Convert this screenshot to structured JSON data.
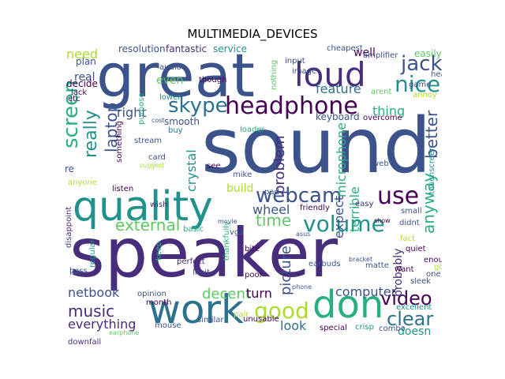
{
  "title": "MULTIMEDIA_DEVICES",
  "palette": [
    "#440154",
    "#472d7b",
    "#3b528b",
    "#2c728e",
    "#21918c",
    "#28ae80",
    "#5ec962",
    "#addc30",
    "#fde725"
  ],
  "words": [
    {
      "t": "sound",
      "c": "#3b528b"
    },
    {
      "t": "speaker",
      "c": "#472d7b"
    },
    {
      "t": "great",
      "c": "#3b528b"
    },
    {
      "t": "quality",
      "c": "#21918c"
    },
    {
      "t": "work",
      "c": "#2c728e"
    },
    {
      "t": "don",
      "c": "#28ae80"
    },
    {
      "t": "loud",
      "c": "#472d7b"
    },
    {
      "t": "headphone",
      "c": "#440154"
    },
    {
      "t": "webcam",
      "c": "#3b528b"
    },
    {
      "t": "volume",
      "c": "#21918c"
    },
    {
      "t": "use",
      "c": "#440154"
    },
    {
      "t": "skype",
      "c": "#2c728e"
    },
    {
      "t": "nice",
      "c": "#21918c"
    },
    {
      "t": "jack",
      "c": "#3b528b"
    },
    {
      "t": "screen",
      "c": "#28ae80"
    },
    {
      "t": "good",
      "c": "#addc30"
    },
    {
      "t": "video",
      "c": "#440154"
    },
    {
      "t": "clear",
      "c": "#2c728e"
    },
    {
      "t": "really",
      "c": "#21918c"
    },
    {
      "t": "laptop",
      "c": "#3b528b"
    },
    {
      "t": "external",
      "c": "#5ec962"
    },
    {
      "t": "time",
      "c": "#5ec962"
    },
    {
      "t": "music",
      "c": "#472d7b"
    },
    {
      "t": "anyway",
      "c": "#28ae80"
    },
    {
      "t": "better",
      "c": "#3b528b"
    },
    {
      "t": "microphone",
      "c": "#28ae80"
    },
    {
      "t": "picture",
      "c": "#3b528b"
    },
    {
      "t": "problem",
      "c": "#472d7b"
    },
    {
      "t": "decent",
      "c": "#5ec962"
    },
    {
      "t": "everything",
      "c": "#472d7b"
    },
    {
      "t": "netbook",
      "c": "#3b528b"
    },
    {
      "t": "computer",
      "c": "#3b528b"
    },
    {
      "t": "look",
      "c": "#2c728e"
    },
    {
      "t": "turn",
      "c": "#440154"
    },
    {
      "t": "wheel",
      "c": "#3b528b"
    },
    {
      "t": "crystal",
      "c": "#21918c"
    },
    {
      "t": "expect",
      "c": "#3b528b"
    },
    {
      "t": "terrible",
      "c": "#28ae80"
    },
    {
      "t": "feature",
      "c": "#2c728e"
    },
    {
      "t": "thing",
      "c": "#28ae80"
    },
    {
      "t": "right",
      "c": "#3b528b"
    },
    {
      "t": "need",
      "c": "#addc30"
    },
    {
      "t": "real",
      "c": "#3b528b"
    },
    {
      "t": "well",
      "c": "#440154"
    },
    {
      "t": "even",
      "c": "#5ec962"
    },
    {
      "t": "probably",
      "c": "#472d7b"
    },
    {
      "t": "doesn",
      "c": "#21918c"
    },
    {
      "t": "build",
      "c": "#addc30"
    },
    {
      "t": "resolution",
      "c": "#3b528b"
    },
    {
      "t": "fantastic",
      "c": "#472d7b"
    },
    {
      "t": "service",
      "c": "#21918c"
    },
    {
      "t": "plan",
      "c": "#3b528b"
    },
    {
      "t": "decide",
      "c": "#440154"
    },
    {
      "t": "lack",
      "c": "#440154"
    },
    {
      "t": "etc",
      "c": "#440154"
    },
    {
      "t": "purpose",
      "c": "#28ae80"
    },
    {
      "t": "audio",
      "c": "#3b528b"
    },
    {
      "t": "lower",
      "c": "#21918c"
    },
    {
      "t": "though",
      "c": "#440154"
    },
    {
      "t": "input",
      "c": "#3b528b"
    },
    {
      "t": "image",
      "c": "#3b528b"
    },
    {
      "t": "nothing",
      "c": "#5ec962"
    },
    {
      "t": "cheapest",
      "c": "#3b528b"
    },
    {
      "t": "amplifier",
      "c": "#3b528b"
    },
    {
      "t": "easily",
      "c": "#5ec962"
    },
    {
      "t": "head",
      "c": "#3b528b"
    },
    {
      "t": "arent",
      "c": "#5ec962"
    },
    {
      "t": "game",
      "c": "#3b528b"
    },
    {
      "t": "annoy",
      "c": "#addc30"
    },
    {
      "t": "keyboard",
      "c": "#3b528b"
    },
    {
      "t": "overcome",
      "c": "#440154"
    },
    {
      "t": "loader",
      "c": "#28ae80"
    },
    {
      "t": "cost",
      "c": "#3b528b"
    },
    {
      "t": "smooth",
      "c": "#3b528b"
    },
    {
      "t": "buy",
      "c": "#2c728e"
    },
    {
      "t": "stream",
      "c": "#3b528b"
    },
    {
      "t": "something",
      "c": "#440154"
    },
    {
      "t": "card",
      "c": "#3b528b"
    },
    {
      "t": "suggest",
      "c": "#addc30"
    },
    {
      "t": "see",
      "c": "#440154"
    },
    {
      "t": "web",
      "c": "#3b528b"
    },
    {
      "t": "mike",
      "c": "#3b528b"
    },
    {
      "t": "re",
      "c": "#3b528b"
    },
    {
      "t": "anyone",
      "c": "#addc30"
    },
    {
      "t": "listen",
      "c": "#440154"
    },
    {
      "t": "wish",
      "c": "#472d7b"
    },
    {
      "t": "pad",
      "c": "#3b528b"
    },
    {
      "t": "friendly",
      "c": "#440154"
    },
    {
      "t": "easy",
      "c": "#472d7b"
    },
    {
      "t": "small",
      "c": "#3b528b"
    },
    {
      "t": "touchscreen",
      "c": "#21918c"
    },
    {
      "t": "disappoint",
      "c": "#472d7b"
    },
    {
      "t": "perfect",
      "c": "#472d7b"
    },
    {
      "t": "movie",
      "c": "#3b528b"
    },
    {
      "t": "bite",
      "c": "#440154"
    },
    {
      "t": "vga",
      "c": "#3b528b"
    },
    {
      "t": "didnt",
      "c": "#3b528b"
    },
    {
      "t": "fact",
      "c": "#addc30"
    },
    {
      "t": "quiet",
      "c": "#440154"
    },
    {
      "t": "enough",
      "c": "#440154"
    },
    {
      "t": "isn",
      "c": "#3b528b"
    },
    {
      "t": "bass",
      "c": "#3b528b"
    },
    {
      "t": "regular",
      "c": "#21918c"
    },
    {
      "t": "keep",
      "c": "#28ae80"
    },
    {
      "t": "limit",
      "c": "#3b528b"
    },
    {
      "t": "thankfully",
      "c": "#28ae80"
    },
    {
      "t": "earbuds",
      "c": "#3b528b"
    },
    {
      "t": "matte",
      "c": "#3b528b"
    },
    {
      "t": "want",
      "c": "#440154"
    },
    {
      "t": "sleek",
      "c": "#3b528b"
    },
    {
      "t": "downfall",
      "c": "#472d7b"
    },
    {
      "t": "opinion",
      "c": "#3b528b"
    },
    {
      "t": "month",
      "c": "#440154"
    },
    {
      "t": "mouse",
      "c": "#3b528b"
    },
    {
      "t": "similar",
      "c": "#3b528b"
    },
    {
      "t": "unusable",
      "c": "#440154"
    },
    {
      "t": "special",
      "c": "#440154"
    },
    {
      "t": "crisp",
      "c": "#21918c"
    },
    {
      "t": "combo",
      "c": "#3b528b"
    },
    {
      "t": "poor",
      "c": "#440154"
    },
    {
      "t": "pair",
      "c": "#addc30"
    },
    {
      "t": "basic",
      "c": "#28ae80"
    },
    {
      "t": "phone",
      "c": "#3b528b"
    },
    {
      "t": "excellent",
      "c": "#21918c"
    },
    {
      "t": "asus",
      "c": "#3b528b"
    },
    {
      "t": "bracket",
      "c": "#3b528b"
    },
    {
      "t": "earphone",
      "c": "#5ec962"
    },
    {
      "t": "show",
      "c": "#440154"
    },
    {
      "t": "one",
      "c": "#3b528b"
    },
    {
      "t": "go",
      "c": "#addc30"
    }
  ]
}
